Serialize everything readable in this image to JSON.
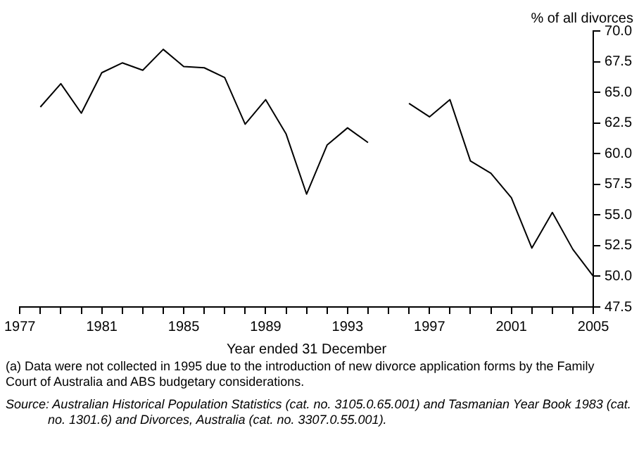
{
  "chart_data": {
    "type": "line",
    "ylabel": "% of all divorces",
    "xlabel": "Year ended 31 December",
    "x": [
      1978,
      1979,
      1980,
      1981,
      1982,
      1983,
      1984,
      1985,
      1986,
      1987,
      1988,
      1989,
      1990,
      1991,
      1992,
      1993,
      1994,
      1995,
      1996,
      1997,
      1998,
      1999,
      2000,
      2001,
      2002,
      2003,
      2004,
      2005
    ],
    "series": [
      {
        "color": "#000000",
        "values": [
          63.8,
          65.7,
          63.3,
          66.6,
          67.4,
          66.8,
          68.5,
          67.1,
          67.0,
          66.2,
          62.4,
          64.4,
          61.6,
          56.7,
          60.7,
          62.1,
          60.9,
          null,
          64.1,
          63.0,
          64.4,
          59.4,
          58.4,
          56.4,
          52.3,
          55.2,
          52.2,
          50.0
        ]
      }
    ],
    "xlim": [
      1977,
      2005
    ],
    "xticks": [
      1977,
      {
        "value": 1978,
        "label": null
      },
      {
        "value": 1979,
        "label": null
      },
      {
        "value": 1980,
        "label": null
      },
      1981,
      {
        "value": 1982,
        "label": null
      },
      {
        "value": 1983,
        "label": null
      },
      {
        "value": 1984,
        "label": null
      },
      1985,
      {
        "value": 1986,
        "label": null
      },
      {
        "value": 1987,
        "label": null
      },
      {
        "value": 1988,
        "label": null
      },
      1989,
      {
        "value": 1990,
        "label": null
      },
      {
        "value": 1991,
        "label": null
      },
      {
        "value": 1992,
        "label": null
      },
      1993,
      {
        "value": 1994,
        "label": null
      },
      {
        "value": 1995,
        "label": null
      },
      {
        "value": 1996,
        "label": null
      },
      1997,
      {
        "value": 1998,
        "label": null
      },
      {
        "value": 1999,
        "label": null
      },
      {
        "value": 2000,
        "label": null
      },
      2001,
      {
        "value": 2002,
        "label": null
      },
      {
        "value": 2003,
        "label": null
      },
      {
        "value": 2004,
        "label": null
      },
      2005
    ],
    "ylim": [
      47.5,
      70
    ],
    "yticks": [
      47.5,
      {
        "value": 50,
        "label": "50.0"
      },
      52.5,
      {
        "value": 55,
        "label": "55.0"
      },
      57.5,
      {
        "value": 60,
        "label": "60.0"
      },
      62.5,
      {
        "value": 65,
        "label": "65.0"
      },
      67.5,
      {
        "value": 70,
        "label": "70.0"
      }
    ],
    "grid": false,
    "legend": false,
    "marker": "none",
    "line_style": "solid",
    "annotations": [
      "(a) Data were not collected in 1995 due to the introduction of new divorce application forms by the Family Court of Australia and ABS budgetary considerations.",
      "Source: Australian Historical Population Statistics (cat. no. 3105.0.65.001) and Tasmanian Year Book 1983 (cat. no. 1301.6) and Divorces, Australia (cat. no. 3307.0.55.001)."
    ]
  }
}
